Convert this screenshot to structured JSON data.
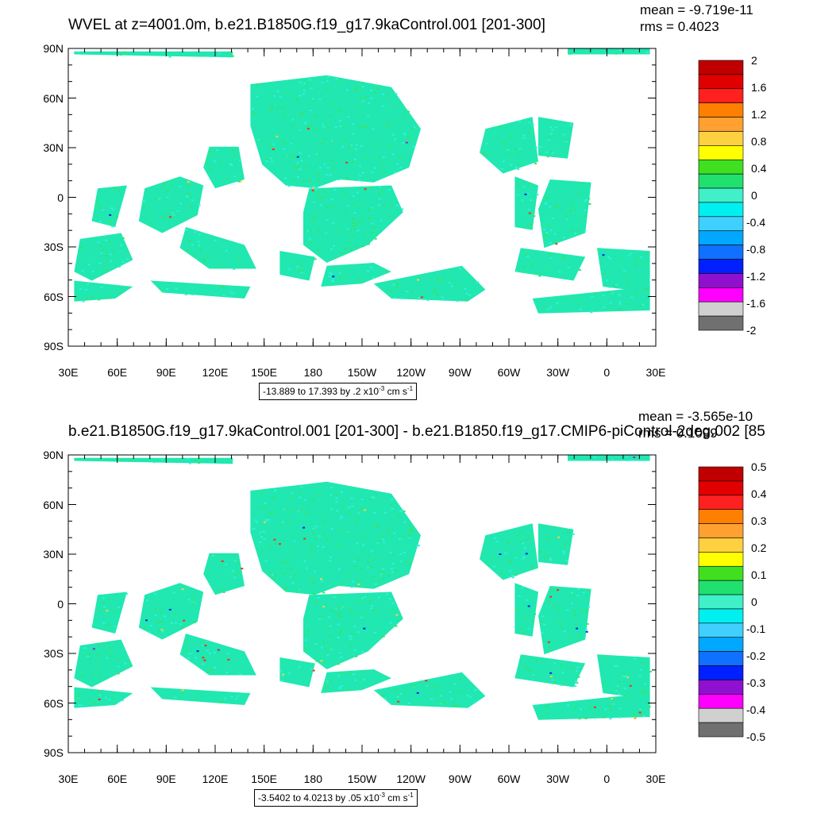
{
  "panels": [
    {
      "id": "top",
      "title": "WVEL at z=4001.0m, b.e21.B1850G.f19_g17.9kaControl.001 [201-300]",
      "mean_text": "mean = -9.719e-11",
      "rms_text": "rms = 0.4023",
      "range_text": "-13.889 to 17.393 by .2 x10",
      "range_exp": "-3",
      "range_unit": " cm s",
      "range_unit_exp": "-1",
      "colorbar_labels": [
        "2",
        "1.6",
        "1.2",
        "0.8",
        "0.4",
        "0",
        "-0.4",
        "-0.8",
        "-1.2",
        "-1.6",
        "-2"
      ]
    },
    {
      "id": "bottom",
      "title": "b.e21.B1850G.f19_g17.9kaControl.001 [201-300] - b.e21.B1850.f19_g17.CMIP6-piControl-2deg.002 [85",
      "mean_text": "mean = -3.565e-10",
      "rms_text": "rms = 0.1099",
      "range_text": "-3.5402 to 4.0213 by .05 x10",
      "range_exp": "-3",
      "range_unit": " cm s",
      "range_unit_exp": "-1",
      "colorbar_labels": [
        "0.5",
        "0.4",
        "0.3",
        "0.2",
        "0.1",
        "0",
        "-0.1",
        "-0.2",
        "-0.3",
        "-0.4",
        "-0.5"
      ]
    }
  ],
  "axes": {
    "lat_labels": [
      "90N",
      "60N",
      "30N",
      "0",
      "30S",
      "60S",
      "90S"
    ],
    "lon_labels": [
      "30E",
      "60E",
      "90E",
      "120E",
      "150E",
      "180",
      "150W",
      "120W",
      "90W",
      "60W",
      "30W",
      "0",
      "30E"
    ]
  },
  "colorbar_colors": [
    "#c00000",
    "#e00000",
    "#ff2020",
    "#ff8000",
    "#ffa030",
    "#ffd040",
    "#ffff00",
    "#40e020",
    "#20e070",
    "#40f0c8",
    "#00f0f0",
    "#40d0ff",
    "#00a8ff",
    "#1070ff",
    "#0020ff",
    "#9010d0",
    "#ff00ff",
    "#d0d0d0",
    "#707070"
  ],
  "field_colors": {
    "ocean_main": "#20e8b0",
    "ocean_alt": "#40e060",
    "cyan": "#30f0e0",
    "hot": "#ff3010",
    "cold": "#1020ff",
    "warm": "#ffd030",
    "magenta": "#b020c0"
  }
}
